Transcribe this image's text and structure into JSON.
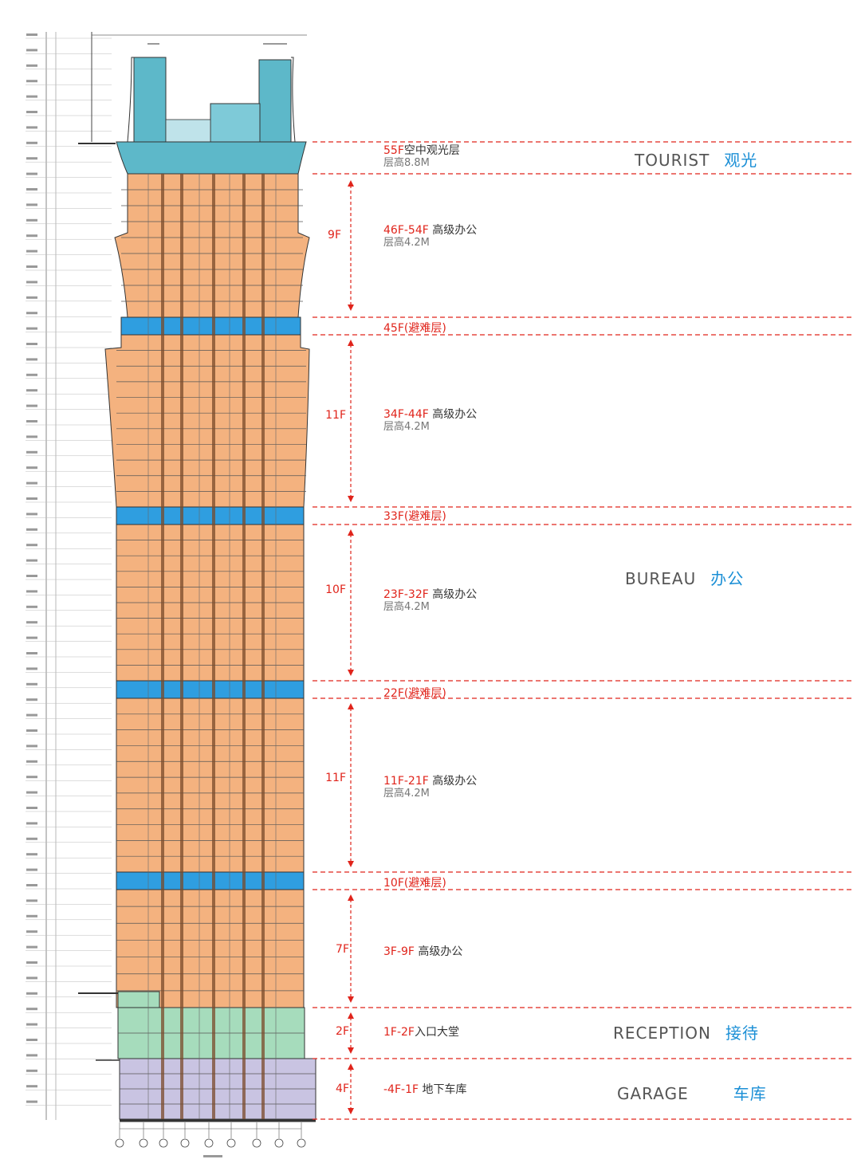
{
  "colors": {
    "office": "#f4b27f",
    "refuge": "#2f9ee0",
    "tourist": "#5db8c9",
    "reception": "#a6dcbc",
    "garage": "#c9c4e2",
    "dash": "#e0241b",
    "accent": "#1b8fd6"
  },
  "segments": [
    {
      "id": "tourist",
      "floor": "55F",
      "name": "空中观光层",
      "height": "层高8.8M"
    },
    {
      "id": "s46",
      "floor": "46F-54F",
      "name": " 高级办公",
      "height": "层高4.2M",
      "count": "9F"
    },
    {
      "id": "r45",
      "label": "45F(避难层)"
    },
    {
      "id": "s34",
      "floor": "34F-44F",
      "name": " 高级办公",
      "height": "层高4.2M",
      "count": "11F"
    },
    {
      "id": "r33",
      "label": "33F(避难层)"
    },
    {
      "id": "s23",
      "floor": "23F-32F",
      "name": " 高级办公",
      "height": "层高4.2M",
      "count": "10F"
    },
    {
      "id": "r22",
      "label": "22F(避难层)"
    },
    {
      "id": "s11",
      "floor": "11F-21F",
      "name": " 高级办公",
      "height": "层高4.2M",
      "count": "11F"
    },
    {
      "id": "r10",
      "label": "10F(避难层)"
    },
    {
      "id": "s3",
      "floor": "3F-9F",
      "name": " 高级办公",
      "count": "7F"
    },
    {
      "id": "s1",
      "floor": "1F-2F",
      "name": "入口大堂",
      "count": "2F"
    },
    {
      "id": "sg",
      "floor": "-4F-1F",
      "name": " 地下车库",
      "count": "4F"
    }
  ],
  "zones": {
    "tourist": {
      "en": "TOURIST",
      "cn": "观光"
    },
    "bureau": {
      "en": "BUREAU",
      "cn": "办公"
    },
    "reception": {
      "en": "RECEPTION",
      "cn": "接待"
    },
    "garage": {
      "en": "GARAGE",
      "cn": "车库"
    }
  }
}
